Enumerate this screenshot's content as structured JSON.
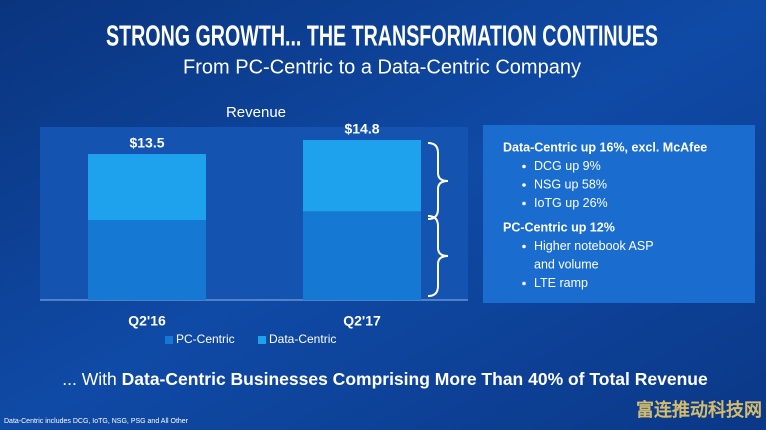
{
  "slide": {
    "title": "STRONG GROWTH... THE TRANSFORMATION CONTINUES",
    "subtitle": "From PC-Centric to a Data-Centric Company",
    "highlights": [
      {
        "heading": "Data-Centric up 16%, excl. McAfee",
        "items": [
          "DCG up 9%",
          "NSG up 58%",
          "IoTG up 26%"
        ]
      },
      {
        "heading": "PC-Centric up 12%",
        "items": [
          "Higher notebook ASP",
          "and volume",
          "LTE ramp"
        ]
      }
    ],
    "tagline_prefix": "... With",
    "tagline": "Data-Centric Businesses Comprising More Than 40% of Total Revenue",
    "footnote": "Data-Centric includes DCG, IoTG, NSG, PSG and All Other",
    "watermark": "富连推动科技网"
  },
  "chart_data": {
    "type": "stacked_bar",
    "title": "Revenue",
    "categories": [
      "Q2'16",
      "Q2'17"
    ],
    "series": [
      {
        "name": "PC-Centric",
        "color": "#1578d2",
        "values": [
          7.4,
          8.2
        ]
      },
      {
        "name": "Data-Centric",
        "color": "#1ea2ee",
        "values": [
          6.1,
          6.6
        ]
      }
    ],
    "total_values": [
      13.5,
      14.8
    ],
    "value_labels": [
      "$13.5",
      "$14.8"
    ],
    "ylim": [
      0,
      16
    ]
  }
}
